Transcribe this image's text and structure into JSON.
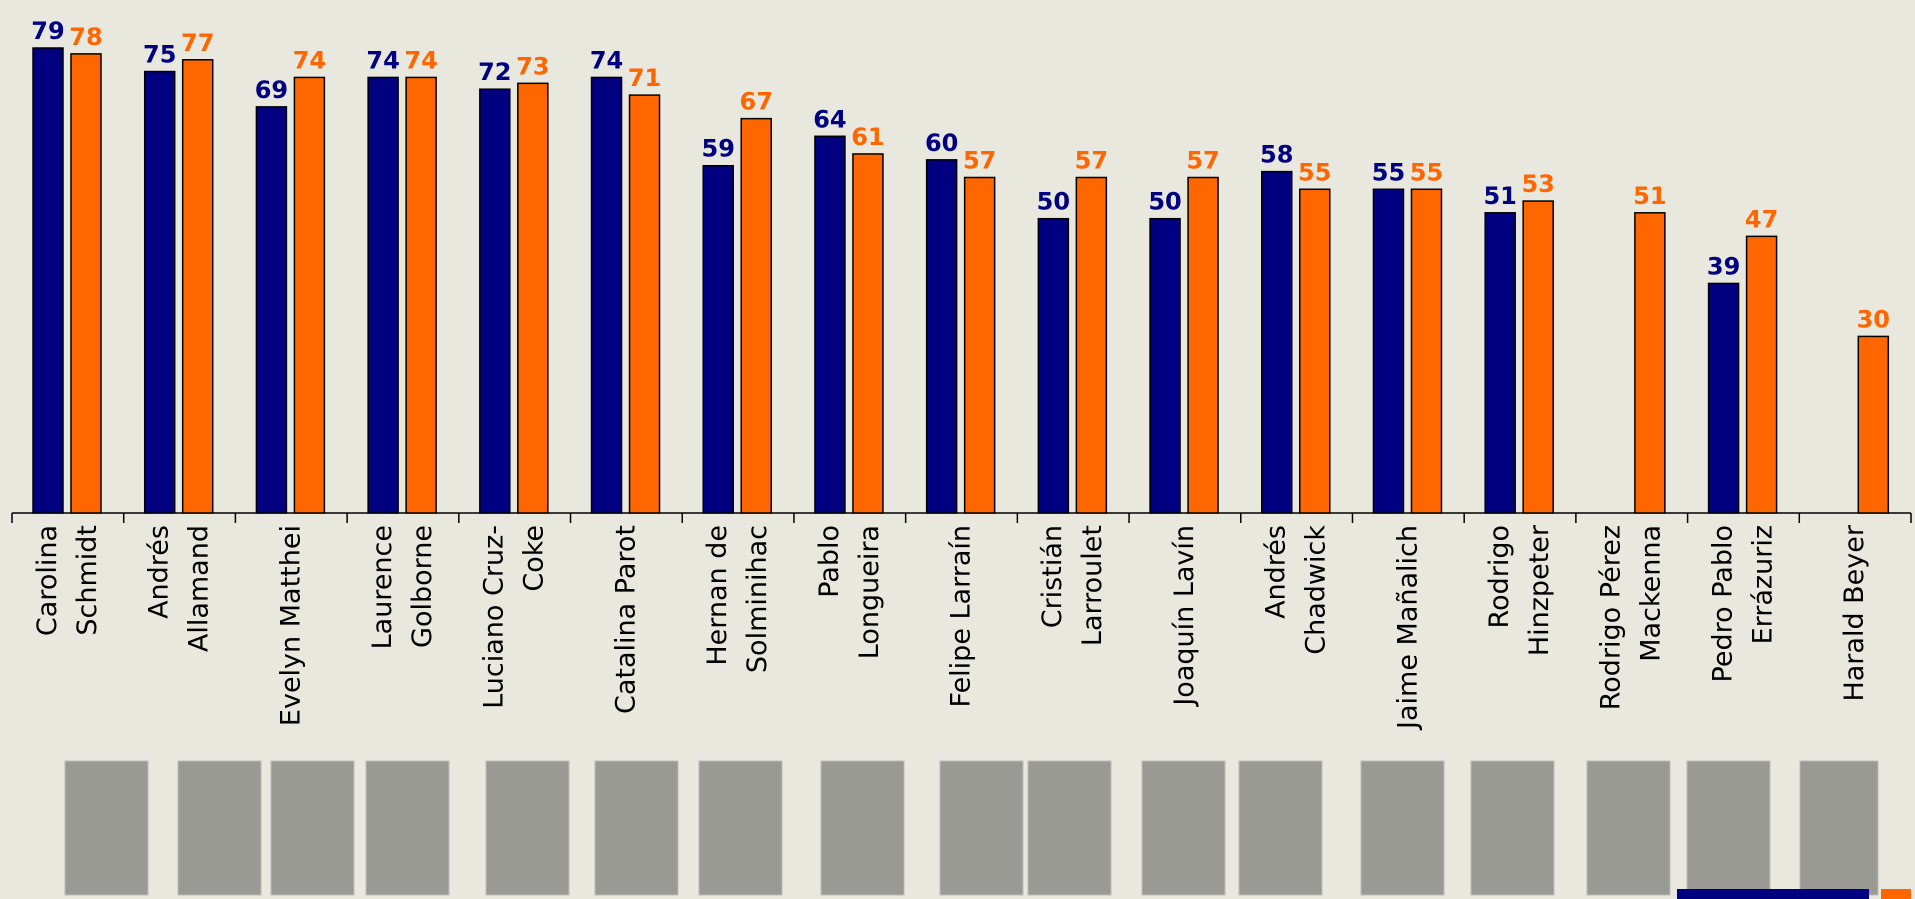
{
  "chart_data": {
    "type": "bar",
    "categories": [
      "Carolina\nSchmidt",
      "Andrés\nAllamand",
      "Evelyn Matthei",
      "Laurence\nGolborne",
      "Luciano Cruz-\nCoke",
      "Catalina Parot",
      "Hernan de\nSolminihac",
      "Pablo\nLongueira",
      "Felipe Larraín",
      "Cristián\nLarroulet",
      "Joaquín Lavín",
      "Andrés\nChadwick",
      "Jaime Mañalich",
      "Rodrigo\nHinzpeter",
      "Rodrigo Pérez\nMackenna",
      "Pedro Pablo\nErrázuriz",
      "Harald Beyer"
    ],
    "series": [
      {
        "color": "#000080",
        "values": [
          79,
          75,
          69,
          74,
          72,
          74,
          59,
          64,
          60,
          50,
          50,
          58,
          55,
          51,
          null,
          39,
          null
        ]
      },
      {
        "color": "#ff6600",
        "values": [
          78,
          77,
          74,
          74,
          73,
          71,
          67,
          61,
          57,
          57,
          57,
          55,
          55,
          53,
          51,
          47,
          30
        ]
      }
    ]
  }
}
